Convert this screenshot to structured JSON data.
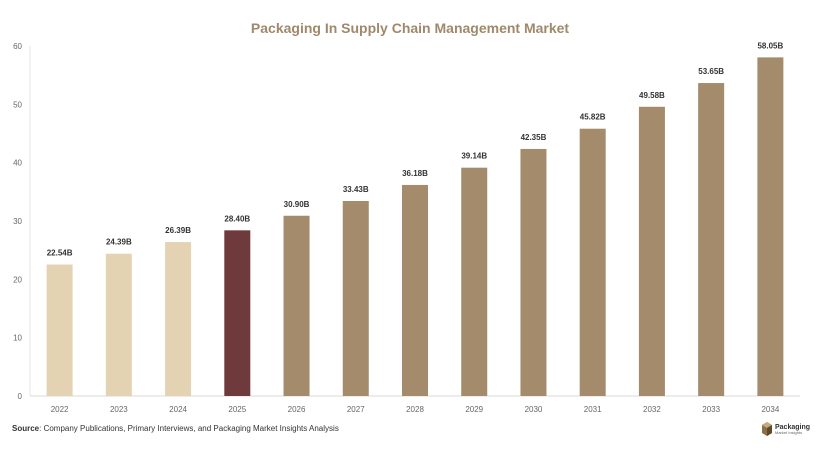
{
  "chart_data": {
    "type": "bar",
    "title": "Packaging In Supply Chain Management Market",
    "categories": [
      "2022",
      "2023",
      "2024",
      "2025",
      "2026",
      "2027",
      "2028",
      "2029",
      "2030",
      "2031",
      "2032",
      "2033",
      "2034"
    ],
    "values": [
      22.54,
      24.39,
      26.39,
      28.4,
      30.9,
      33.43,
      36.18,
      39.14,
      42.35,
      45.82,
      49.58,
      53.65,
      58.05
    ],
    "data_labels": [
      "22.54B",
      "24.39B",
      "26.39B",
      "28.40B",
      "30.90B",
      "33.43B",
      "36.18B",
      "39.14B",
      "42.35B",
      "45.82B",
      "49.58B",
      "53.65B",
      "58.05B"
    ],
    "yticks": [
      0,
      10,
      20,
      30,
      40,
      50,
      60
    ],
    "ylim": [
      0,
      60
    ],
    "xlabel": "",
    "ylabel": "",
    "grid": false,
    "bar_colors": [
      "#e3d3b3",
      "#e3d3b3",
      "#e3d3b3",
      "#6e3a3c",
      "#a38b6b",
      "#a38b6b",
      "#a38b6b",
      "#a38b6b",
      "#a38b6b",
      "#a38b6b",
      "#a38b6b",
      "#a38b6b",
      "#a38b6b"
    ]
  },
  "footer": {
    "source_label": "Source",
    "source_text": ": Company Publications, Primary Interviews, and Packaging Market Insights Analysis"
  },
  "logo": {
    "line1": "Packaging",
    "line2": "Market Insights",
    "icon": "box-icon"
  }
}
